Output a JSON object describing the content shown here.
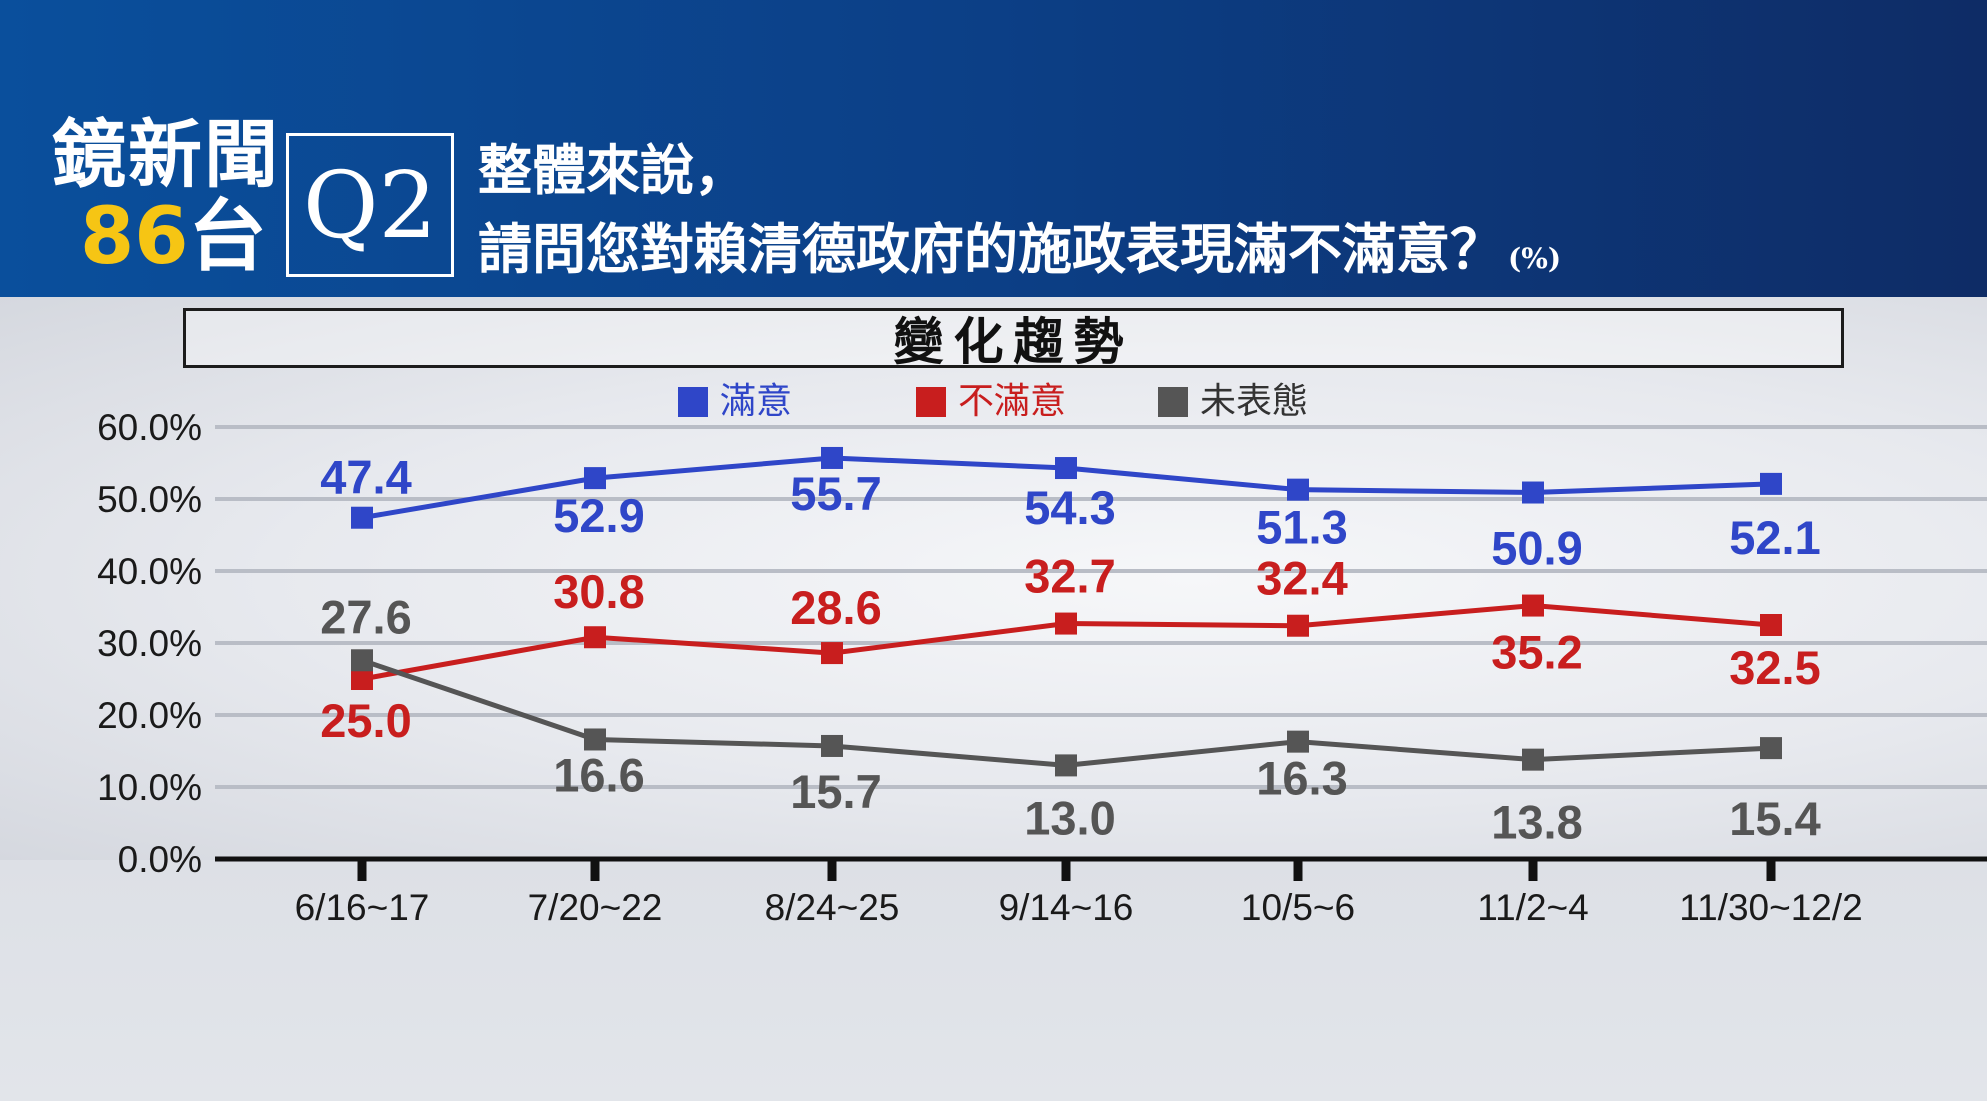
{
  "header": {
    "logo_line1": "鏡新聞",
    "logo_number": "86",
    "logo_suffix": "台",
    "question_label": "Q2",
    "question_line1": "整體來說，",
    "question_line2": "請問您對賴清德政府的施政表現滿不滿意？",
    "unit": "(%)"
  },
  "trend_title": "變化趨勢",
  "colors": {
    "satisfied": "#2f46c8",
    "dissatisfied": "#c81e1e",
    "no_opinion": "#555555"
  },
  "chart_data": {
    "type": "line",
    "title": "變化趨勢",
    "categories": [
      "6/16~17",
      "7/20~22",
      "8/24~25",
      "9/14~16",
      "10/5~6",
      "11/2~4",
      "11/30~12/2"
    ],
    "yticks": [
      "0.0%",
      "10.0%",
      "20.0%",
      "30.0%",
      "40.0%",
      "50.0%",
      "60.0%"
    ],
    "ylim": [
      0,
      60
    ],
    "grid": true,
    "legend_position": "top",
    "series": [
      {
        "name": "滿意",
        "color": "#2f46c8",
        "values": [
          47.4,
          52.9,
          55.7,
          54.3,
          51.3,
          50.9,
          52.1
        ],
        "labels": [
          "47.4",
          "52.9",
          "55.7",
          "54.3",
          "51.3",
          "50.9",
          "52.1"
        ]
      },
      {
        "name": "不滿意",
        "color": "#c81e1e",
        "values": [
          25.0,
          30.8,
          28.6,
          32.7,
          32.4,
          35.2,
          32.5
        ],
        "labels": [
          "25.0",
          "30.8",
          "28.6",
          "32.7",
          "32.4",
          "35.2",
          "32.5"
        ]
      },
      {
        "name": "未表態",
        "color": "#555555",
        "values": [
          27.6,
          16.6,
          15.7,
          13.0,
          16.3,
          13.8,
          15.4
        ],
        "labels": [
          "27.6",
          "16.6",
          "15.7",
          "13.0",
          "16.3",
          "13.8",
          "15.4"
        ]
      }
    ]
  }
}
